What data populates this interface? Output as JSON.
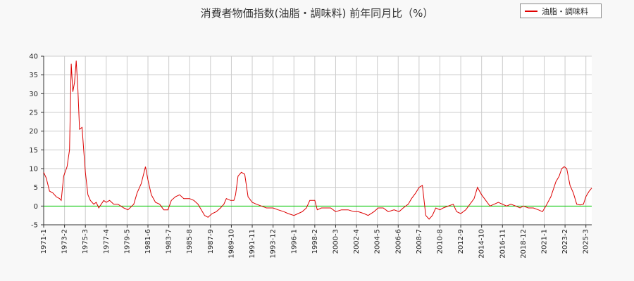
{
  "chart_data": {
    "type": "line",
    "title": "消費者物価指数(油脂・調味料) 前年同月比（%）",
    "xlabel": "",
    "ylabel": "",
    "ylim": [
      -5,
      40
    ],
    "yticks": [
      -5,
      0,
      5,
      10,
      15,
      20,
      25,
      30,
      35,
      40
    ],
    "xticks": [
      "1971-1",
      "1973-2",
      "1975-3",
      "1977-4",
      "1979-5",
      "1981-6",
      "1983-7",
      "1985-8",
      "1987-9",
      "1989-10",
      "1991-11",
      "1993-12",
      "1996-1",
      "1998-2",
      "2000-3",
      "2002-4",
      "2004-5",
      "2006-6",
      "2008-7",
      "2010-8",
      "2012-9",
      "2014-10",
      "2016-11",
      "2018-12",
      "2021-1",
      "2023-2",
      "2025-3"
    ],
    "xrange": [
      "1971-1",
      "2025-10"
    ],
    "grid": true,
    "legend_position": "top-right",
    "reference_line": 0,
    "series": [
      {
        "name": "油脂・調味料",
        "color": "#dd0000",
        "points": [
          [
            "1971-1",
            9.0
          ],
          [
            "1971-4",
            7.5
          ],
          [
            "1971-8",
            4.0
          ],
          [
            "1971-12",
            3.5
          ],
          [
            "1972-4",
            2.5
          ],
          [
            "1972-8",
            2.0
          ],
          [
            "1972-10",
            1.5
          ],
          [
            "1973-1",
            8.0
          ],
          [
            "1973-5",
            10.5
          ],
          [
            "1973-8",
            15.0
          ],
          [
            "1973-10",
            38.0
          ],
          [
            "1973-12",
            30.5
          ],
          [
            "1974-2",
            33.0
          ],
          [
            "1974-4",
            38.8
          ],
          [
            "1974-6",
            31.0
          ],
          [
            "1974-8",
            20.5
          ],
          [
            "1974-11",
            21.0
          ],
          [
            "1975-1",
            15.0
          ],
          [
            "1975-3",
            9.0
          ],
          [
            "1975-6",
            3.0
          ],
          [
            "1975-9",
            1.5
          ],
          [
            "1976-1",
            0.5
          ],
          [
            "1976-4",
            1.0
          ],
          [
            "1976-7",
            -0.5
          ],
          [
            "1976-10",
            0.5
          ],
          [
            "1977-1",
            1.5
          ],
          [
            "1977-4",
            1.0
          ],
          [
            "1977-8",
            1.5
          ],
          [
            "1978-1",
            0.5
          ],
          [
            "1978-6",
            0.5
          ],
          [
            "1979-1",
            -0.5
          ],
          [
            "1979-6",
            -1.0
          ],
          [
            "1980-1",
            0.5
          ],
          [
            "1980-5",
            3.5
          ],
          [
            "1980-10",
            6.0
          ],
          [
            "1981-3",
            10.5
          ],
          [
            "1981-6",
            7.0
          ],
          [
            "1981-10",
            3.0
          ],
          [
            "1982-3",
            1.0
          ],
          [
            "1982-8",
            0.5
          ],
          [
            "1983-1",
            -1.0
          ],
          [
            "1983-6",
            -1.0
          ],
          [
            "1983-10",
            1.5
          ],
          [
            "1984-3",
            2.5
          ],
          [
            "1984-8",
            3.0
          ],
          [
            "1985-1",
            2.0
          ],
          [
            "1985-8",
            2.0
          ],
          [
            "1986-1",
            1.5
          ],
          [
            "1986-6",
            0.5
          ],
          [
            "1986-10",
            -1.0
          ],
          [
            "1987-2",
            -2.5
          ],
          [
            "1987-6",
            -3.0
          ],
          [
            "1987-11",
            -2.0
          ],
          [
            "1988-4",
            -1.5
          ],
          [
            "1988-9",
            -0.5
          ],
          [
            "1989-1",
            0.5
          ],
          [
            "1989-4",
            2.0
          ],
          [
            "1989-9",
            1.5
          ],
          [
            "1990-1",
            1.5
          ],
          [
            "1990-3",
            3.0
          ],
          [
            "1990-6",
            8.0
          ],
          [
            "1990-10",
            9.0
          ],
          [
            "1991-2",
            8.5
          ],
          [
            "1991-6",
            2.5
          ],
          [
            "1991-11",
            1.0
          ],
          [
            "1992-4",
            0.5
          ],
          [
            "1992-10",
            0.0
          ],
          [
            "1993-4",
            -0.5
          ],
          [
            "1993-12",
            -0.5
          ],
          [
            "1994-6",
            -1.0
          ],
          [
            "1995-1",
            -1.5
          ],
          [
            "1995-6",
            -2.0
          ],
          [
            "1996-1",
            -2.5
          ],
          [
            "1996-6",
            -2.0
          ],
          [
            "1996-11",
            -1.5
          ],
          [
            "1997-4",
            -0.5
          ],
          [
            "1997-8",
            1.5
          ],
          [
            "1998-2",
            1.5
          ],
          [
            "1998-5",
            -1.0
          ],
          [
            "1998-10",
            -0.5
          ],
          [
            "1999-3",
            -0.5
          ],
          [
            "1999-9",
            -0.5
          ],
          [
            "2000-3",
            -1.5
          ],
          [
            "2000-10",
            -1.0
          ],
          [
            "2001-6",
            -1.0
          ],
          [
            "2002-1",
            -1.5
          ],
          [
            "2002-6",
            -1.5
          ],
          [
            "2003-1",
            -2.0
          ],
          [
            "2003-6",
            -2.5
          ],
          [
            "2004-1",
            -1.5
          ],
          [
            "2004-6",
            -0.5
          ],
          [
            "2004-12",
            -0.5
          ],
          [
            "2005-6",
            -1.5
          ],
          [
            "2006-1",
            -1.0
          ],
          [
            "2006-7",
            -1.5
          ],
          [
            "2006-12",
            -0.5
          ],
          [
            "2007-6",
            0.5
          ],
          [
            "2007-10",
            2.0
          ],
          [
            "2008-3",
            3.5
          ],
          [
            "2008-7",
            5.0
          ],
          [
            "2008-11",
            5.5
          ],
          [
            "2009-3",
            -2.5
          ],
          [
            "2009-7",
            -3.5
          ],
          [
            "2009-11",
            -2.5
          ],
          [
            "2010-3",
            -0.5
          ],
          [
            "2010-8",
            -1.0
          ],
          [
            "2010-12",
            -0.5
          ],
          [
            "2011-6",
            0.0
          ],
          [
            "2011-12",
            0.5
          ],
          [
            "2012-4",
            -1.5
          ],
          [
            "2012-9",
            -2.0
          ],
          [
            "2013-3",
            -1.0
          ],
          [
            "2013-8",
            0.5
          ],
          [
            "2014-1",
            2.0
          ],
          [
            "2014-5",
            5.0
          ],
          [
            "2014-10",
            3.0
          ],
          [
            "2015-3",
            1.5
          ],
          [
            "2015-8",
            0.0
          ],
          [
            "2016-1",
            0.5
          ],
          [
            "2016-6",
            1.0
          ],
          [
            "2016-11",
            0.5
          ],
          [
            "2017-4",
            0.0
          ],
          [
            "2017-9",
            0.5
          ],
          [
            "2018-3",
            0.0
          ],
          [
            "2018-8",
            -0.5
          ],
          [
            "2018-12",
            0.0
          ],
          [
            "2019-6",
            -0.5
          ],
          [
            "2019-12",
            -0.5
          ],
          [
            "2020-6",
            -1.0
          ],
          [
            "2020-11",
            -1.5
          ],
          [
            "2021-3",
            0.0
          ],
          [
            "2021-9",
            2.5
          ],
          [
            "2022-3",
            6.5
          ],
          [
            "2022-7",
            8.0
          ],
          [
            "2022-10",
            10.0
          ],
          [
            "2023-1",
            10.5
          ],
          [
            "2023-4",
            10.0
          ],
          [
            "2023-8",
            5.5
          ],
          [
            "2023-12",
            3.5
          ],
          [
            "2024-4",
            0.5
          ],
          [
            "2024-8",
            0.3
          ],
          [
            "2024-12",
            0.5
          ],
          [
            "2025-3",
            2.5
          ],
          [
            "2025-7",
            4.0
          ],
          [
            "2025-10",
            4.8
          ]
        ]
      }
    ]
  }
}
